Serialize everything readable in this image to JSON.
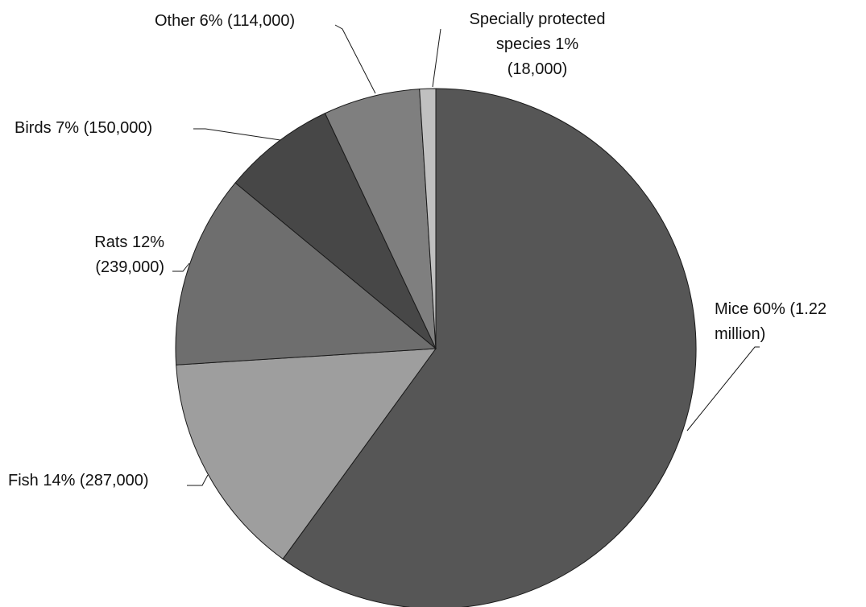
{
  "chart_data": {
    "type": "pie",
    "title": "",
    "start_angle_deg": 0,
    "direction": "clockwise",
    "slices": [
      {
        "label": "Mice",
        "percent": 60,
        "value": 1220000,
        "display_value": "1.22 million",
        "color": "#565656",
        "label_lines": [
          "Mice 60% (1.22",
          "million)"
        ]
      },
      {
        "label": "Fish",
        "percent": 14,
        "value": 287000,
        "display_value": "287,000",
        "color": "#9e9e9e",
        "label_lines": [
          "Fish 14% (287,000)"
        ]
      },
      {
        "label": "Rats",
        "percent": 12,
        "value": 239000,
        "display_value": "239,000",
        "color": "#6e6e6e",
        "label_lines": [
          "Rats 12%",
          "(239,000)"
        ]
      },
      {
        "label": "Birds",
        "percent": 7,
        "value": 150000,
        "display_value": "150,000",
        "color": "#474747",
        "label_lines": [
          "Birds 7% (150,000)"
        ]
      },
      {
        "label": "Other",
        "percent": 6,
        "value": 114000,
        "display_value": "114,000",
        "color": "#7f7f7f",
        "label_lines": [
          "Other 6% (114,000)"
        ]
      },
      {
        "label": "Specially protected species",
        "percent": 1,
        "value": 18000,
        "display_value": "18,000",
        "color": "#c0c0c0",
        "label_lines": [
          "Specially protected",
          "species 1%",
          "(18,000)"
        ]
      }
    ]
  }
}
